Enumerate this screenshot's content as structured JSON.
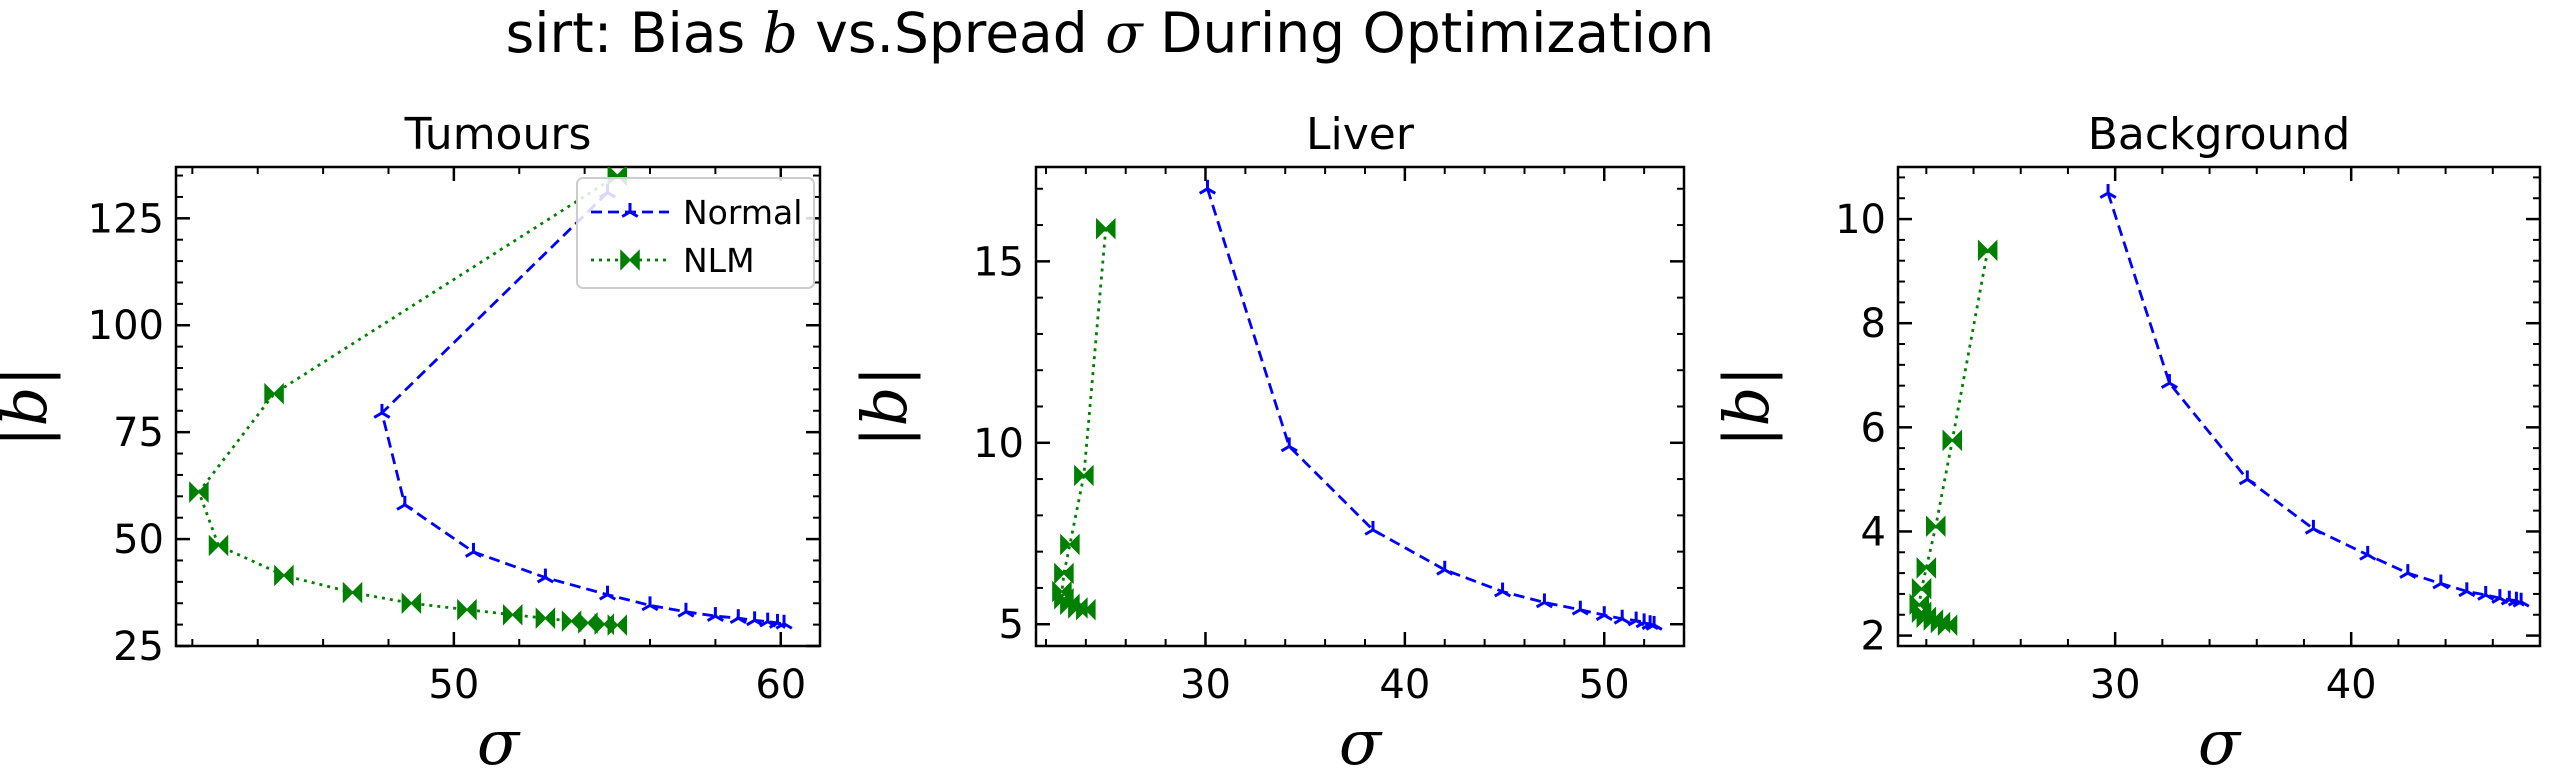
{
  "figure": {
    "title_prefix": "sirt: Bias ",
    "title_b": "b",
    "title_middle": " vs.Spread ",
    "title_sigma": "σ",
    "title_suffix": " During Optimization"
  },
  "colors": {
    "normal": "#0000ff",
    "nlm": "#008000",
    "axis": "#000000"
  },
  "chart_data": [
    {
      "type": "line",
      "title": "Tumours",
      "xlabel": "σ",
      "ylabel": "|b|",
      "xlim": [
        41.5,
        61.2
      ],
      "ylim": [
        25,
        137
      ],
      "xticks": [
        50,
        60
      ],
      "yticks": [
        25,
        50,
        75,
        100,
        125
      ],
      "legend": {
        "position": "top-right",
        "entries": [
          "Normal",
          "NLM"
        ]
      },
      "series": [
        {
          "name": "Normal",
          "style": "dashed",
          "marker": "tri",
          "x": [
            54.7,
            47.8,
            48.5,
            50.6,
            52.8,
            54.7,
            56.0,
            57.1,
            58.0,
            58.7,
            59.2,
            59.6,
            59.9,
            60.1
          ],
          "y": [
            131,
            79.5,
            58,
            47,
            41,
            37,
            34.5,
            33,
            32,
            31.5,
            31,
            30.7,
            30.4,
            30.2
          ]
        },
        {
          "name": "NLM",
          "style": "dotted",
          "marker": "bowtie",
          "x": [
            55.0,
            44.5,
            42.2,
            42.8,
            44.8,
            46.9,
            48.7,
            50.4,
            51.8,
            52.8,
            53.6,
            54.1,
            54.6,
            55.0
          ],
          "y": [
            135,
            84,
            61,
            48.5,
            41.5,
            37.5,
            35,
            33.5,
            32.3,
            31.5,
            30.8,
            30.4,
            30.1,
            29.9
          ]
        }
      ]
    },
    {
      "type": "line",
      "title": "Liver",
      "xlabel": "σ",
      "ylabel": "|b|",
      "xlim": [
        21.5,
        54.0
      ],
      "ylim": [
        4.4,
        17.6
      ],
      "xticks": [
        30,
        40,
        50
      ],
      "yticks": [
        5,
        10,
        15
      ],
      "series": [
        {
          "name": "Normal",
          "style": "dashed",
          "marker": "tri",
          "x": [
            30.1,
            34.2,
            38.4,
            42.0,
            44.9,
            47.0,
            48.8,
            50.0,
            50.9,
            51.6,
            52.0,
            52.3,
            52.5
          ],
          "y": [
            17.0,
            9.9,
            7.6,
            6.5,
            5.9,
            5.6,
            5.4,
            5.25,
            5.15,
            5.1,
            5.05,
            5.0,
            4.98
          ]
        },
        {
          "name": "NLM",
          "style": "dotted",
          "marker": "bowtie",
          "x": [
            25.0,
            23.9,
            23.2,
            22.9,
            22.8,
            22.9,
            23.2,
            23.6,
            24.0
          ],
          "y": [
            15.9,
            9.1,
            7.2,
            6.4,
            5.9,
            5.7,
            5.55,
            5.45,
            5.4
          ]
        }
      ]
    },
    {
      "type": "line",
      "title": "Background",
      "xlabel": "σ",
      "ylabel": "|b|",
      "xlim": [
        20.8,
        48.0
      ],
      "ylim": [
        1.8,
        11.0
      ],
      "xticks": [
        30,
        40
      ],
      "yticks": [
        2,
        4,
        6,
        8,
        10
      ],
      "series": [
        {
          "name": "Normal",
          "style": "dashed",
          "marker": "tri",
          "x": [
            29.7,
            32.3,
            35.6,
            38.4,
            40.7,
            42.4,
            43.8,
            44.9,
            45.7,
            46.3,
            46.7,
            47.0,
            47.2
          ],
          "y": [
            10.5,
            6.85,
            5.0,
            4.05,
            3.55,
            3.2,
            3.0,
            2.85,
            2.78,
            2.72,
            2.69,
            2.67,
            2.65
          ]
        },
        {
          "name": "NLM",
          "style": "dotted",
          "marker": "bowtie",
          "x": [
            24.6,
            23.1,
            22.4,
            22.0,
            21.8,
            21.7,
            21.8,
            22.0,
            22.3,
            22.6,
            22.9
          ],
          "y": [
            9.4,
            5.75,
            4.1,
            3.3,
            2.9,
            2.6,
            2.45,
            2.35,
            2.3,
            2.25,
            2.2
          ]
        }
      ]
    }
  ]
}
